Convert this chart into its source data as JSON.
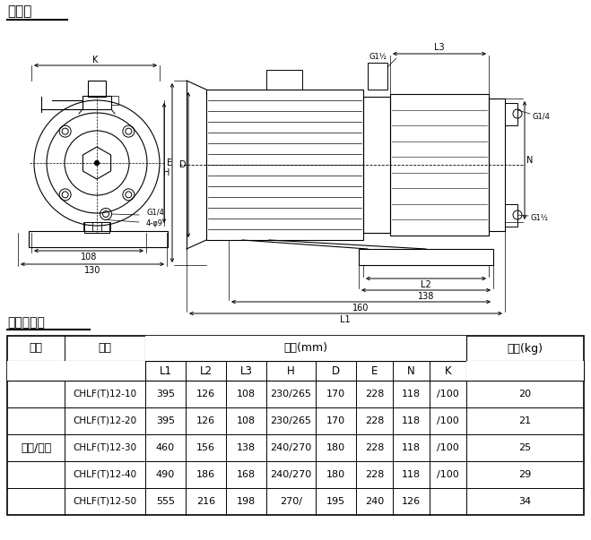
{
  "title_diagram": "安装图",
  "title_table": "尺寸和重量",
  "col_motor": "电机",
  "col_model": "型号",
  "col_size": "尺寸(mm)",
  "col_weight": "重量(kg)",
  "motor_label": "三相/单相",
  "sub_headers": [
    "L1",
    "L2",
    "L3",
    "H",
    "D",
    "E",
    "N",
    "K"
  ],
  "table_rows": [
    [
      "CHLF(T)12-10",
      "395",
      "126",
      "108",
      "230/265",
      "170",
      "228",
      "118",
      "/100",
      "20"
    ],
    [
      "CHLF(T)12-20",
      "395",
      "126",
      "108",
      "230/265",
      "170",
      "228",
      "118",
      "/100",
      "21"
    ],
    [
      "CHLF(T)12-30",
      "460",
      "156",
      "138",
      "240/270",
      "180",
      "228",
      "118",
      "/100",
      "25"
    ],
    [
      "CHLF(T)12-40",
      "490",
      "186",
      "168",
      "240/270",
      "180",
      "228",
      "118",
      "/100",
      "29"
    ],
    [
      "CHLF(T)12-50",
      "555",
      "216",
      "198",
      "270/",
      "195",
      "240",
      "126",
      "",
      "34"
    ]
  ],
  "bg": "#ffffff",
  "lc": "#000000"
}
